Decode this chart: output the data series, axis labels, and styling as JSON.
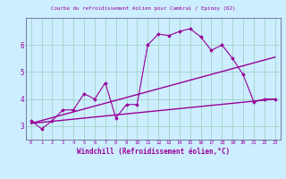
{
  "title": "Courbe du refroidissement éolien pour Cambrai / Epinoy (62)",
  "xlabel": "Windchill (Refroidissement éolien,°C)",
  "background_color": "#cceeff",
  "grid_color": "#99ccbb",
  "line_color": "#990099",
  "spine_color": "#666699",
  "x_ticks": [
    0,
    1,
    2,
    3,
    4,
    5,
    6,
    7,
    8,
    9,
    10,
    11,
    12,
    13,
    14,
    15,
    16,
    17,
    18,
    19,
    20,
    21,
    22,
    23
  ],
  "xlim": [
    -0.5,
    23.5
  ],
  "ylim": [
    2.5,
    7.0
  ],
  "y_ticks": [
    3,
    4,
    5,
    6
  ],
  "main_y": [
    3.2,
    2.9,
    3.2,
    3.6,
    3.6,
    4.2,
    4.0,
    4.6,
    3.3,
    3.8,
    3.8,
    6.0,
    6.4,
    6.35,
    6.5,
    6.6,
    6.3,
    5.8,
    6.0,
    5.5,
    4.9,
    3.9,
    4.0,
    4.0
  ],
  "trend1_x": [
    0,
    23
  ],
  "trend1_y": [
    3.1,
    5.55
  ],
  "trend2_x": [
    0,
    23
  ],
  "trend2_y": [
    3.1,
    4.0
  ]
}
